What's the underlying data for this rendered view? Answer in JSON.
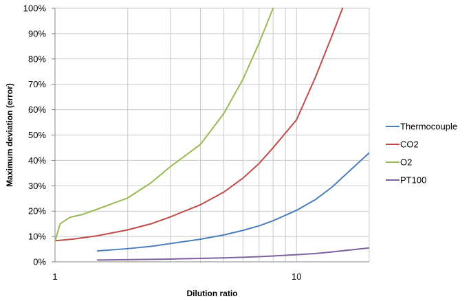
{
  "chart_data": {
    "type": "line",
    "title": "",
    "xlabel": "Dilution ratio",
    "ylabel": "Maximum deviation (error)",
    "xscale": "log",
    "xlim": [
      1,
      20
    ],
    "ylim": [
      0,
      100
    ],
    "x_ticks": [
      1,
      10
    ],
    "y_ticks": [
      0,
      10,
      20,
      30,
      40,
      50,
      60,
      70,
      80,
      90,
      100
    ],
    "y_tick_format": "percent",
    "grid": "major and minor vertical, major horizontal",
    "legend_position": "right",
    "series": [
      {
        "name": "Thermocouple",
        "color": "#4a7ebb",
        "points": [
          [
            1.5,
            4.3
          ],
          [
            2,
            5.2
          ],
          [
            2.5,
            6.1
          ],
          [
            3,
            7.2
          ],
          [
            4,
            8.9
          ],
          [
            5,
            10.6
          ],
          [
            6,
            12.4
          ],
          [
            7,
            14.2
          ],
          [
            8,
            16.2
          ],
          [
            10,
            20.3
          ],
          [
            12,
            24.6
          ],
          [
            14,
            29.4
          ],
          [
            16,
            34.5
          ],
          [
            18,
            39.0
          ],
          [
            20,
            43.0
          ]
        ]
      },
      {
        "name": "CO2",
        "color": "#be4b48",
        "points": [
          [
            1,
            8.3
          ],
          [
            1.2,
            9.0
          ],
          [
            1.5,
            10.3
          ],
          [
            2,
            12.6
          ],
          [
            2.5,
            15.0
          ],
          [
            3,
            17.7
          ],
          [
            4,
            22.5
          ],
          [
            5,
            27.5
          ],
          [
            6,
            33.0
          ],
          [
            7,
            38.8
          ],
          [
            8,
            45.0
          ],
          [
            10,
            56.0
          ],
          [
            12,
            73.0
          ],
          [
            14,
            89.0
          ],
          [
            15.5,
            100
          ]
        ]
      },
      {
        "name": "O2",
        "color": "#98b954",
        "points": [
          [
            1,
            8.0
          ],
          [
            1.05,
            15.0
          ],
          [
            1.15,
            17.5
          ],
          [
            1.3,
            18.7
          ],
          [
            1.5,
            20.8
          ],
          [
            2,
            25.2
          ],
          [
            2.5,
            31.2
          ],
          [
            3,
            37.5
          ],
          [
            4,
            46.3
          ],
          [
            5,
            58.5
          ],
          [
            6,
            72.0
          ],
          [
            7,
            86.3
          ],
          [
            8,
            100
          ]
        ]
      },
      {
        "name": "PT100",
        "color": "#7d60a0",
        "points": [
          [
            1.5,
            0.7
          ],
          [
            2,
            0.85
          ],
          [
            3,
            1.1
          ],
          [
            4,
            1.35
          ],
          [
            5,
            1.55
          ],
          [
            6,
            1.8
          ],
          [
            7,
            2.05
          ],
          [
            8,
            2.3
          ],
          [
            10,
            2.8
          ],
          [
            12,
            3.3
          ],
          [
            14,
            3.9
          ],
          [
            16,
            4.5
          ],
          [
            18,
            5.0
          ],
          [
            20,
            5.5
          ]
        ]
      }
    ]
  }
}
